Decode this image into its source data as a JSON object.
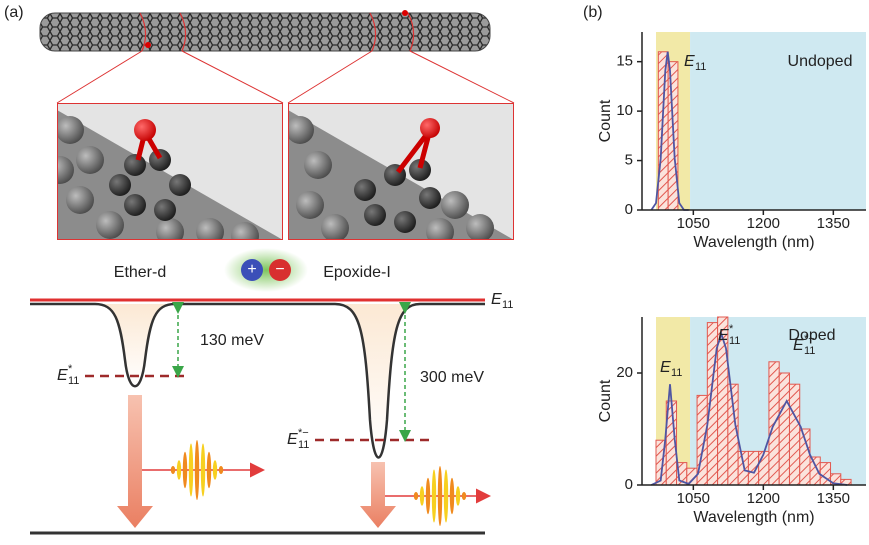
{
  "panel_a": {
    "label": "(a)",
    "ether": "Ether-d",
    "epoxide": "Epoxide-I",
    "plus": "+",
    "minus": "−",
    "gap1": "130 meV",
    "gap2": "300 meV",
    "e11": {
      "base": "E",
      "sub": "11"
    },
    "e11_star": {
      "base": "E",
      "sub": "11",
      "sup": "*"
    },
    "e11_star_minus": {
      "base": "E",
      "sub": "11",
      "sup": "*−"
    }
  },
  "panel_b": {
    "label": "(b)"
  },
  "chart_data": [
    {
      "type": "histogram",
      "label": "Undoped",
      "xlabel": "Wavelength (nm)",
      "ylabel": "Count",
      "color": "#e2584f",
      "bins": [
        975,
        996,
        1017
      ],
      "values": [
        16,
        15
      ],
      "fit": {
        "color": "#4f56a3",
        "x": [
          960,
          970,
          980,
          985,
          990,
          995,
          1000,
          1005,
          1010,
          1020,
          1030,
          1040
        ],
        "values": [
          0,
          0.7,
          5.2,
          9.7,
          14.1,
          16,
          14.1,
          9.7,
          5.2,
          0.7,
          0,
          0
        ]
      },
      "bands": [
        {
          "range": [
            970,
            1043
          ],
          "color": "#f2e9a7"
        },
        {
          "range": [
            1043,
            1420
          ],
          "color": "#cfe9f1"
        }
      ],
      "annotations": [
        {
          "base": "E",
          "sub": "11"
        }
      ],
      "xlim": [
        940,
        1420
      ],
      "ylim": [
        0,
        18
      ],
      "xticks": [
        1050,
        1200,
        1350
      ],
      "yticks": [
        0,
        5,
        10,
        15
      ]
    },
    {
      "type": "histogram",
      "label": "Doped",
      "xlabel": "Wavelength (nm)",
      "ylabel": "Count",
      "color": "#e2584f",
      "bins": [
        970,
        992,
        1014,
        1036,
        1058,
        1080,
        1102,
        1124,
        1146,
        1168,
        1190,
        1212,
        1234,
        1256,
        1278,
        1300,
        1322,
        1344,
        1366,
        1388
      ],
      "values": [
        8,
        15,
        4,
        3,
        16,
        29,
        30,
        18,
        6,
        6,
        6,
        22,
        20,
        18,
        10,
        5,
        4,
        2,
        1
      ],
      "fit": {
        "color": "#4f56a3",
        "x": [
          960,
          980,
          990,
          1000,
          1010,
          1020,
          1040,
          1060,
          1080,
          1100,
          1110,
          1120,
          1140,
          1160,
          1180,
          1200,
          1220,
          1250,
          1280,
          1300,
          1320,
          1350,
          1380
        ],
        "values": [
          0,
          0.8,
          8.2,
          18,
          8.2,
          0.8,
          0.2,
          2,
          10.7,
          24.4,
          27,
          24.4,
          10.8,
          2.6,
          2.2,
          5.4,
          10.4,
          15,
          10.4,
          5.4,
          2,
          0.3,
          0
        ]
      },
      "bands": [
        {
          "range": [
            970,
            1043
          ],
          "color": "#f2e9a7"
        },
        {
          "range": [
            1043,
            1420
          ],
          "color": "#cfe9f1"
        }
      ],
      "annotations": [
        {
          "base": "E",
          "sub": "11"
        },
        {
          "base": "E",
          "sub": "11",
          "sup": "*"
        },
        {
          "base": "E",
          "sub": "11",
          "sup": "*−"
        }
      ],
      "xlim": [
        940,
        1420
      ],
      "ylim": [
        0,
        30
      ],
      "xticks": [
        1050,
        1200,
        1350
      ],
      "yticks": [
        0,
        20
      ]
    }
  ]
}
